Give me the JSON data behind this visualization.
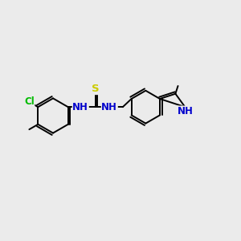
{
  "bg_color": "#ebebeb",
  "bond_color": "#000000",
  "bond_width": 1.4,
  "atom_colors": {
    "C": "#000000",
    "N": "#0000cc",
    "S": "#cccc00",
    "Cl": "#00bb00",
    "H": "#000000"
  },
  "font_size": 8.5,
  "xlim": [
    0,
    10
  ],
  "ylim": [
    0,
    10
  ]
}
